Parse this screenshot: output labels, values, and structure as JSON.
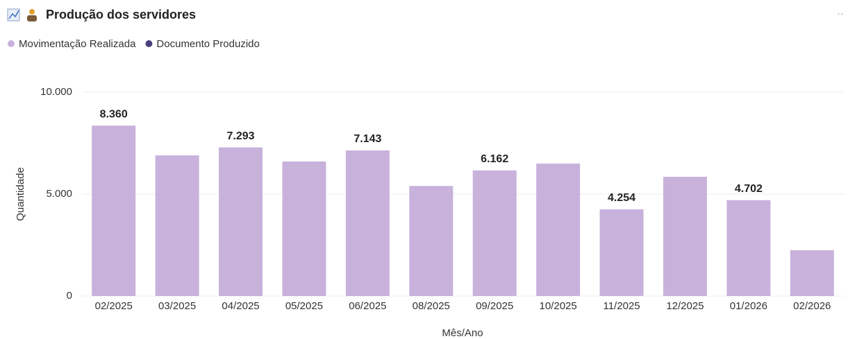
{
  "chart_data": {
    "type": "bar",
    "title": "Produção dos servidores",
    "x_label": "Mês/Ano",
    "y_label": "Quantidade",
    "categories": [
      "02/2025",
      "03/2025",
      "04/2025",
      "05/2025",
      "06/2025",
      "08/2025",
      "09/2025",
      "10/2025",
      "11/2025",
      "12/2025",
      "01/2026",
      "02/2026"
    ],
    "series": [
      {
        "name": "Movimentação Realizada",
        "color": "#c8b2dc",
        "values": [
          8360,
          6900,
          7293,
          6600,
          7143,
          5400,
          6162,
          6500,
          4254,
          5850,
          4702,
          2250
        ],
        "value_labels": [
          "8.360",
          null,
          "7.293",
          null,
          "7.143",
          null,
          "6.162",
          null,
          "4.254",
          null,
          "4.702",
          null
        ]
      }
    ],
    "legend": [
      {
        "name": "Movimentação Realizada",
        "color": "#c8b2dc"
      },
      {
        "name": "Documento Produzido",
        "color": "#4a3f7f"
      }
    ],
    "ylim": [
      0,
      10000
    ],
    "yticks": [
      0,
      {
        "value": 5000,
        "label": "5.000"
      },
      {
        "value": 10000,
        "label": "10.000"
      }
    ],
    "grid": true
  }
}
